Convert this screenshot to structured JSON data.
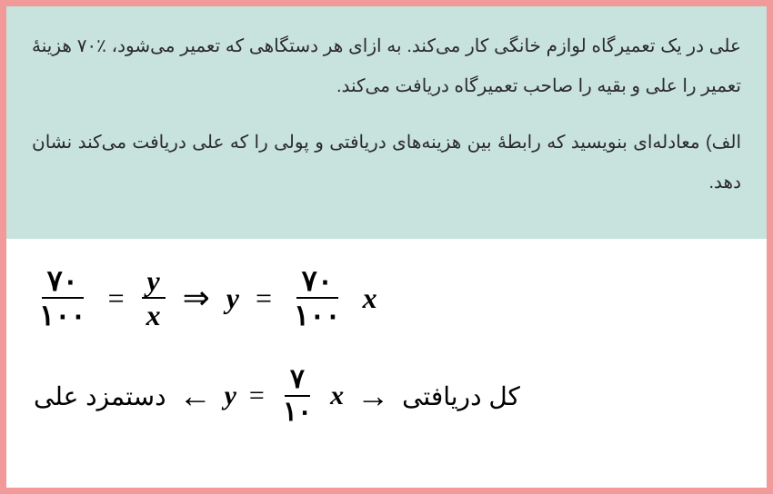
{
  "problem": {
    "text1": "علی در یک تعمیرگاه لوازم خانگی کار می‌کند. به ازای هر دستگاهی که تعمیر می‌شود، ٪۷۰ هزینهٔ تعمیر را علی و بقیه را صاحب تعمیرگاه دریافت می‌کند.",
    "text2": "الف) معادله‌ای بنویسید که رابطهٔ بین هزینه‌های دریافتی و پولی را که علی دریافت می‌کند نشان دهد.",
    "bg_color": "#c8e2de",
    "text_color": "#2a2a2a",
    "fontsize": 20
  },
  "border": {
    "color": "#f29999",
    "width": 7
  },
  "equation1": {
    "frac1_num": "۷۰",
    "frac1_den": "۱۰۰",
    "eq": "=",
    "frac2_num": "y",
    "frac2_den": "x",
    "implies": "⇒",
    "y": "y",
    "frac3_num": "۷۰",
    "frac3_den": "۱۰۰",
    "x": "x"
  },
  "equation2": {
    "label_left": "دستمزد علی",
    "arrow_left": "←",
    "y": "y",
    "eq": "=",
    "frac_num": "۷",
    "frac_den": "۱۰",
    "x": "x",
    "arrow_right": "→",
    "label_right": "کل دریافتی"
  },
  "solution": {
    "bg_color": "#ffffff",
    "fontsize": 32
  }
}
